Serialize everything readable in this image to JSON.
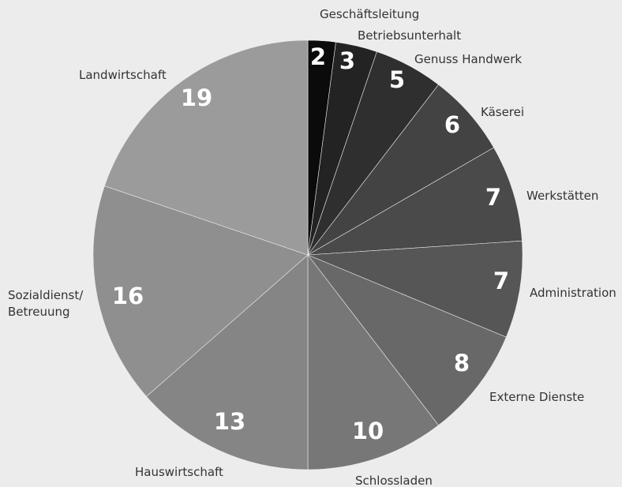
{
  "chart_data": {
    "type": "pie",
    "title": "",
    "categories": [
      "Geschäftsleitung",
      "Betriebsunterhalt",
      "Genuss Handwerk",
      "Käserei",
      "Werkstätten",
      "Administration",
      "Externe Dienste",
      "Schlossladen",
      "Hauswirtschaft",
      "Sozialdienst/\nBetreuung",
      "Landwirtschaft"
    ],
    "values": [
      2,
      3,
      5,
      6,
      7,
      7,
      8,
      10,
      13,
      16,
      19
    ],
    "colors": [
      "#0b0b0b",
      "#232323",
      "#2f2f2f",
      "#434343",
      "#4a4a4a",
      "#565656",
      "#686868",
      "#777777",
      "#858585",
      "#8f8f8f",
      "#9b9b9b"
    ],
    "start": "12 o'clock",
    "direction": "clockwise",
    "legend": "none"
  }
}
